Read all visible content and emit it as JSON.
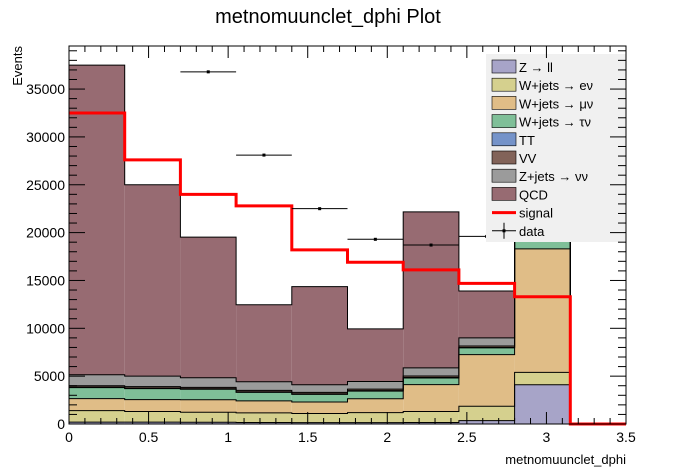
{
  "chart_data": {
    "type": "bar",
    "title": "metnomuunclet_dphi Plot",
    "xlabel": "metnomuunclet_dphi",
    "ylabel": "Events",
    "xlim": [
      0,
      3.5
    ],
    "ylim": [
      0,
      39500
    ],
    "x_ticks": [
      0,
      0.5,
      1,
      1.5,
      2,
      2.5,
      3,
      3.5
    ],
    "y_ticks": [
      0,
      5000,
      10000,
      15000,
      20000,
      25000,
      30000,
      35000
    ],
    "bin_edges": [
      0,
      0.35,
      0.7,
      1.05,
      1.4,
      1.75,
      2.1,
      2.45,
      2.8,
      3.15,
      3.5
    ],
    "legend_position": "top-right",
    "series": [
      {
        "name": "Z → ll",
        "color": "#a7a4c8",
        "values": [
          200,
          200,
          180,
          160,
          150,
          140,
          160,
          350,
          4100,
          0
        ]
      },
      {
        "name": "W+jets → eν",
        "color": "#d5d08e",
        "values": [
          1200,
          1100,
          1050,
          1000,
          950,
          1050,
          1150,
          1500,
          1300,
          0
        ]
      },
      {
        "name": "W+jets → μν",
        "color": "#e0bd87",
        "values": [
          1250,
          1250,
          1300,
          1250,
          1200,
          1450,
          2800,
          5400,
          12900,
          0
        ]
      },
      {
        "name": "W+jets → τν",
        "color": "#7fbf98",
        "values": [
          1150,
          1150,
          1100,
          900,
          800,
          800,
          700,
          700,
          800,
          0
        ]
      },
      {
        "name": "TT",
        "color": "#7593c9",
        "values": [
          50,
          50,
          50,
          50,
          50,
          50,
          50,
          50,
          50,
          0
        ]
      },
      {
        "name": "VV",
        "color": "#826359",
        "values": [
          150,
          150,
          150,
          150,
          150,
          150,
          150,
          150,
          150,
          0
        ]
      },
      {
        "name": "Z+jets → νν",
        "color": "#9b9b9b",
        "values": [
          1150,
          1100,
          1000,
          900,
          800,
          800,
          850,
          850,
          900,
          0
        ]
      },
      {
        "name": "QCD",
        "color": "#976b72",
        "values": [
          32350,
          20000,
          14700,
          8050,
          10250,
          5500,
          16300,
          4900,
          200,
          0
        ]
      }
    ],
    "signal": {
      "name": "signal",
      "color": "#ff0000",
      "values": [
        32500,
        27600,
        24000,
        22800,
        18200,
        16900,
        16100,
        14700,
        13300,
        0
      ]
    },
    "data": {
      "name": "data",
      "x": [
        0.875,
        1.225,
        1.575,
        1.925,
        2.275,
        2.625
      ],
      "y": [
        36800,
        28100,
        22500,
        19300,
        18700,
        19600
      ],
      "xerr": 0.175
    }
  }
}
